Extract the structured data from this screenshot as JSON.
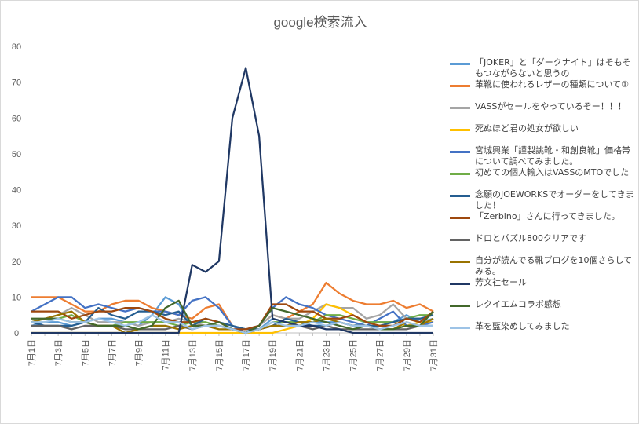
{
  "chart_data": {
    "type": "line",
    "title": "google検索流入",
    "xlabel": "",
    "ylabel": "",
    "ylim": [
      0,
      80
    ],
    "yticks": [
      0,
      10,
      20,
      30,
      40,
      50,
      60,
      70,
      80
    ],
    "x": [
      "7月1日",
      "7月2日",
      "7月3日",
      "7月4日",
      "7月5日",
      "7月6日",
      "7月7日",
      "7月8日",
      "7月9日",
      "7月10日",
      "7月11日",
      "7月12日",
      "7月13日",
      "7月14日",
      "7月15日",
      "7月16日",
      "7月17日",
      "7月18日",
      "7月19日",
      "7月20日",
      "7月21日",
      "7月22日",
      "7月23日",
      "7月24日",
      "7月25日",
      "7月26日",
      "7月27日",
      "7月28日",
      "7月29日",
      "7月30日",
      "7月31日"
    ],
    "xtick_labels": [
      "7月1日",
      "7月3日",
      "7月5日",
      "7月7日",
      "7月9日",
      "7月11日",
      "7月13日",
      "7月15日",
      "7月17日",
      "7月19日",
      "7月21日",
      "7月23日",
      "7月25日",
      "7月27日",
      "7月29日",
      "7月31日"
    ],
    "grid": false,
    "legend_position": "right",
    "series": [
      {
        "name": "「JOKER」と「ダークナイト」はそもそもつながらないと思うの",
        "color": "#5b9bd5",
        "values": [
          2,
          3,
          3,
          2,
          3,
          4,
          4,
          3,
          2,
          5,
          10,
          8,
          2,
          2,
          2,
          1,
          0,
          1,
          4,
          3,
          3,
          3,
          3,
          3,
          2,
          3,
          3,
          3,
          5,
          3,
          4
        ]
      },
      {
        "name": "革靴に使われるレザーの種類について①",
        "color": "#ed7d31",
        "values": [
          10,
          10,
          10,
          8,
          6,
          6,
          8,
          9,
          9,
          7,
          6,
          5,
          4,
          7,
          8,
          2,
          0,
          2,
          5,
          4,
          6,
          8,
          14,
          11,
          9,
          8,
          8,
          9,
          7,
          8,
          6
        ]
      },
      {
        "name": "VASSがセールをやっているぞー！！！",
        "color": "#a5a5a5",
        "values": [
          3,
          4,
          5,
          7,
          5,
          3,
          3,
          3,
          2,
          3,
          3,
          4,
          3,
          2,
          3,
          2,
          1,
          2,
          5,
          4,
          4,
          6,
          8,
          7,
          7,
          4,
          5,
          8,
          4,
          4,
          3
        ]
      },
      {
        "name": "死ぬほど君の処女が欲しい",
        "color": "#ffc000",
        "values": [
          0,
          0,
          0,
          0,
          0,
          0,
          0,
          0,
          0,
          0,
          0,
          0,
          0,
          0,
          0,
          0,
          0,
          0,
          0,
          1,
          2,
          4,
          8,
          7,
          5,
          3,
          2,
          3,
          2,
          3,
          3
        ]
      },
      {
        "name": "宮城興業「謹製誂靴・和創良靴」価格帯について調べてみました。",
        "color": "#4472c4",
        "values": [
          6,
          8,
          10,
          10,
          7,
          8,
          7,
          6,
          7,
          6,
          6,
          5,
          9,
          10,
          7,
          2,
          0,
          2,
          7,
          10,
          8,
          7,
          5,
          4,
          3,
          2,
          4,
          6,
          2,
          2,
          3
        ]
      },
      {
        "name": "初めての個人輸入はVASSのMTOでした",
        "color": "#70ad47",
        "values": [
          3,
          4,
          4,
          5,
          3,
          2,
          2,
          3,
          3,
          3,
          3,
          2,
          3,
          3,
          2,
          1,
          0,
          1,
          3,
          3,
          3,
          3,
          5,
          5,
          4,
          3,
          3,
          3,
          4,
          5,
          5
        ]
      },
      {
        "name": "念願のJOEWORKSでオーダーをしてきました！",
        "color": "#255e91",
        "values": [
          3,
          2,
          2,
          2,
          3,
          7,
          5,
          4,
          6,
          6,
          5,
          6,
          2,
          4,
          3,
          2,
          1,
          1,
          2,
          4,
          3,
          2,
          2,
          3,
          2,
          2,
          2,
          3,
          4,
          4,
          5
        ]
      },
      {
        "name": "「Zerbino」さんに行ってきました。",
        "color": "#9e480e",
        "values": [
          6,
          6,
          6,
          4,
          5,
          6,
          6,
          7,
          7,
          6,
          4,
          3,
          3,
          4,
          3,
          1,
          1,
          2,
          8,
          8,
          6,
          6,
          4,
          4,
          5,
          3,
          2,
          2,
          4,
          3,
          6
        ]
      },
      {
        "name": "ドロとパズル800クリアです",
        "color": "#636363",
        "values": [
          2,
          2,
          2,
          1,
          2,
          2,
          2,
          1,
          1,
          1,
          1,
          2,
          1,
          2,
          2,
          1,
          0,
          1,
          2,
          2,
          2,
          1,
          2,
          1,
          1,
          1,
          1,
          1,
          1,
          2,
          2
        ]
      },
      {
        "name": "自分が読んでる靴ブログを10個さらしてみる。",
        "color": "#997300",
        "values": [
          3,
          4,
          5,
          6,
          3,
          2,
          2,
          0,
          1,
          2,
          2,
          1,
          2,
          2,
          1,
          1,
          0,
          1,
          2,
          2,
          3,
          3,
          4,
          3,
          2,
          2,
          1,
          1,
          3,
          2,
          4
        ]
      },
      {
        "name": "芳文社セール",
        "color": "#203864",
        "values": [
          0,
          0,
          0,
          0,
          0,
          0,
          0,
          0,
          0,
          0,
          0,
          0,
          19,
          17,
          20,
          60,
          74,
          55,
          4,
          3,
          2,
          2,
          1,
          1,
          0,
          0,
          0,
          0,
          0,
          0,
          0
        ]
      },
      {
        "name": "レクイエムコラボ感想",
        "color": "#43682b",
        "values": [
          4,
          4,
          4,
          3,
          3,
          2,
          2,
          2,
          1,
          2,
          7,
          9,
          2,
          2,
          3,
          1,
          0,
          2,
          7,
          6,
          5,
          4,
          3,
          2,
          1,
          2,
          1,
          1,
          2,
          2,
          6
        ]
      },
      {
        "name": "革を藍染めしてみました",
        "color": "#9dc3e6",
        "values": [
          3,
          3,
          4,
          3,
          3,
          4,
          3,
          2,
          3,
          5,
          3,
          3,
          1,
          2,
          2,
          1,
          0,
          1,
          3,
          2,
          2,
          3,
          2,
          3,
          2,
          2,
          1,
          2,
          3,
          2,
          2
        ]
      }
    ]
  }
}
